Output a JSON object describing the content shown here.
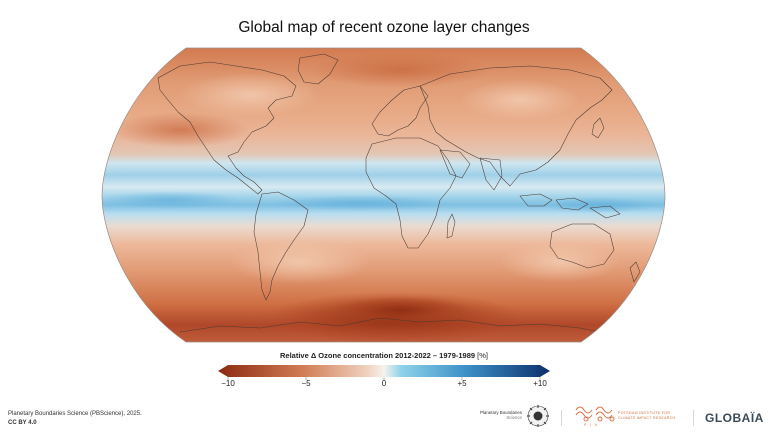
{
  "title": "Global map of recent ozone layer changes",
  "legend": {
    "title": "Relative Δ Ozone concentration 2012-2022 – 1979-1989",
    "unit": "[%]",
    "range": [
      -10,
      10
    ],
    "ticks": [
      {
        "value": -10,
        "label": "−10"
      },
      {
        "value": -5,
        "label": "−5"
      },
      {
        "value": 0,
        "label": "0"
      },
      {
        "value": 5,
        "label": "+5"
      },
      {
        "value": 10,
        "label": "+10"
      }
    ],
    "colors": {
      "neg_max": "#8a2a10",
      "neg_mid": "#d07a52",
      "neg_low": "#f0d2bf",
      "zero": "#f6f3ee",
      "pos_low": "#8fd3ea",
      "pos_mid": "#3b8fc6",
      "pos_max": "#0c2f6b"
    }
  },
  "credits": {
    "line1": "Planetary Boundaries Science (PBScience), 2025.",
    "line2": "CC BY 4.0"
  },
  "logos": {
    "pb_line1": "Planetary Boundaries",
    "pb_line2": "Science",
    "pik_line1": "POTSDAM INSTITUTE FOR",
    "pik_line2": "CLIMATE IMPACT RESEARCH",
    "pik_short": "P I K",
    "globaia": "GLOBAÏA"
  },
  "map": {
    "projection": "Equal Earth",
    "icons": [
      "continent-outlines",
      "ozone-field"
    ]
  }
}
